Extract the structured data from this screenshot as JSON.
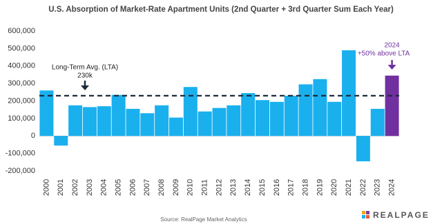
{
  "chart_data": {
    "type": "bar",
    "title": "U.S. Absorption of Market-Rate Apartment Units (2nd Quarter + 3rd Quarter Sum Each Year)",
    "categories": [
      "2000",
      "2001",
      "2002",
      "2003",
      "2004",
      "2005",
      "2006",
      "2007",
      "2008",
      "2009",
      "2010",
      "2011",
      "2012",
      "2013",
      "2014",
      "2015",
      "2016",
      "2017",
      "2018",
      "2019",
      "2020",
      "2021",
      "2022",
      "2023",
      "2024"
    ],
    "values": [
      260000,
      -55000,
      175000,
      165000,
      170000,
      235000,
      155000,
      130000,
      175000,
      105000,
      280000,
      140000,
      160000,
      175000,
      245000,
      205000,
      195000,
      230000,
      295000,
      325000,
      195000,
      490000,
      -145000,
      155000,
      345000
    ],
    "colors": [
      "#1ab0ee",
      "#1ab0ee",
      "#1ab0ee",
      "#1ab0ee",
      "#1ab0ee",
      "#1ab0ee",
      "#1ab0ee",
      "#1ab0ee",
      "#1ab0ee",
      "#1ab0ee",
      "#1ab0ee",
      "#1ab0ee",
      "#1ab0ee",
      "#1ab0ee",
      "#1ab0ee",
      "#1ab0ee",
      "#1ab0ee",
      "#1ab0ee",
      "#1ab0ee",
      "#1ab0ee",
      "#1ab0ee",
      "#1ab0ee",
      "#1ab0ee",
      "#1ab0ee",
      "#7030a0"
    ],
    "ylim": [
      -200000,
      600000
    ],
    "yticks": [
      {
        "value": -200000,
        "label": "-200,000"
      },
      {
        "value": -100000,
        "label": "-100,000"
      },
      0,
      {
        "value": 100000,
        "label": "100,000"
      },
      {
        "value": 200000,
        "label": "200,000"
      },
      {
        "value": 300000,
        "label": "300,000"
      },
      {
        "value": 400000,
        "label": "400,000"
      },
      {
        "value": 500000,
        "label": "500,000"
      },
      {
        "value": 600000,
        "label": "600,000"
      }
    ],
    "reference_line": {
      "value": 230000,
      "label": "Long-Term Avg. (LTA)",
      "value_label": "230k"
    },
    "annotation": {
      "category": "2024",
      "text": "+50% above LTA"
    },
    "source": "Source: RealPage Market Analytics",
    "logo": "REALPAGE"
  }
}
